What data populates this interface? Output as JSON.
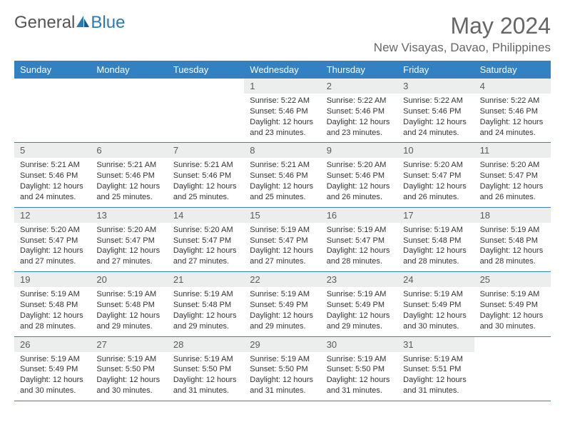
{
  "logo": {
    "general": "General",
    "blue": "Blue"
  },
  "title": "May 2024",
  "location": "New Visayas, Davao, Philippines",
  "colors": {
    "header_bg": "#3181c3",
    "header_text": "#ffffff",
    "daynum_bg": "#eceded",
    "text": "#333333",
    "rule": "#3181c3"
  },
  "daynames": [
    "Sunday",
    "Monday",
    "Tuesday",
    "Wednesday",
    "Thursday",
    "Friday",
    "Saturday"
  ],
  "weeks": [
    [
      {
        "n": "",
        "sr": "",
        "ss": "",
        "dl": "",
        "empty": true
      },
      {
        "n": "",
        "sr": "",
        "ss": "",
        "dl": "",
        "empty": true
      },
      {
        "n": "",
        "sr": "",
        "ss": "",
        "dl": "",
        "empty": true
      },
      {
        "n": "1",
        "sr": "Sunrise: 5:22 AM",
        "ss": "Sunset: 5:46 PM",
        "dl": "Daylight: 12 hours and 23 minutes."
      },
      {
        "n": "2",
        "sr": "Sunrise: 5:22 AM",
        "ss": "Sunset: 5:46 PM",
        "dl": "Daylight: 12 hours and 23 minutes."
      },
      {
        "n": "3",
        "sr": "Sunrise: 5:22 AM",
        "ss": "Sunset: 5:46 PM",
        "dl": "Daylight: 12 hours and 24 minutes."
      },
      {
        "n": "4",
        "sr": "Sunrise: 5:22 AM",
        "ss": "Sunset: 5:46 PM",
        "dl": "Daylight: 12 hours and 24 minutes."
      }
    ],
    [
      {
        "n": "5",
        "sr": "Sunrise: 5:21 AM",
        "ss": "Sunset: 5:46 PM",
        "dl": "Daylight: 12 hours and 24 minutes."
      },
      {
        "n": "6",
        "sr": "Sunrise: 5:21 AM",
        "ss": "Sunset: 5:46 PM",
        "dl": "Daylight: 12 hours and 25 minutes."
      },
      {
        "n": "7",
        "sr": "Sunrise: 5:21 AM",
        "ss": "Sunset: 5:46 PM",
        "dl": "Daylight: 12 hours and 25 minutes."
      },
      {
        "n": "8",
        "sr": "Sunrise: 5:21 AM",
        "ss": "Sunset: 5:46 PM",
        "dl": "Daylight: 12 hours and 25 minutes."
      },
      {
        "n": "9",
        "sr": "Sunrise: 5:20 AM",
        "ss": "Sunset: 5:46 PM",
        "dl": "Daylight: 12 hours and 26 minutes."
      },
      {
        "n": "10",
        "sr": "Sunrise: 5:20 AM",
        "ss": "Sunset: 5:47 PM",
        "dl": "Daylight: 12 hours and 26 minutes."
      },
      {
        "n": "11",
        "sr": "Sunrise: 5:20 AM",
        "ss": "Sunset: 5:47 PM",
        "dl": "Daylight: 12 hours and 26 minutes."
      }
    ],
    [
      {
        "n": "12",
        "sr": "Sunrise: 5:20 AM",
        "ss": "Sunset: 5:47 PM",
        "dl": "Daylight: 12 hours and 27 minutes."
      },
      {
        "n": "13",
        "sr": "Sunrise: 5:20 AM",
        "ss": "Sunset: 5:47 PM",
        "dl": "Daylight: 12 hours and 27 minutes."
      },
      {
        "n": "14",
        "sr": "Sunrise: 5:20 AM",
        "ss": "Sunset: 5:47 PM",
        "dl": "Daylight: 12 hours and 27 minutes."
      },
      {
        "n": "15",
        "sr": "Sunrise: 5:19 AM",
        "ss": "Sunset: 5:47 PM",
        "dl": "Daylight: 12 hours and 27 minutes."
      },
      {
        "n": "16",
        "sr": "Sunrise: 5:19 AM",
        "ss": "Sunset: 5:47 PM",
        "dl": "Daylight: 12 hours and 28 minutes."
      },
      {
        "n": "17",
        "sr": "Sunrise: 5:19 AM",
        "ss": "Sunset: 5:48 PM",
        "dl": "Daylight: 12 hours and 28 minutes."
      },
      {
        "n": "18",
        "sr": "Sunrise: 5:19 AM",
        "ss": "Sunset: 5:48 PM",
        "dl": "Daylight: 12 hours and 28 minutes."
      }
    ],
    [
      {
        "n": "19",
        "sr": "Sunrise: 5:19 AM",
        "ss": "Sunset: 5:48 PM",
        "dl": "Daylight: 12 hours and 28 minutes."
      },
      {
        "n": "20",
        "sr": "Sunrise: 5:19 AM",
        "ss": "Sunset: 5:48 PM",
        "dl": "Daylight: 12 hours and 29 minutes."
      },
      {
        "n": "21",
        "sr": "Sunrise: 5:19 AM",
        "ss": "Sunset: 5:48 PM",
        "dl": "Daylight: 12 hours and 29 minutes."
      },
      {
        "n": "22",
        "sr": "Sunrise: 5:19 AM",
        "ss": "Sunset: 5:49 PM",
        "dl": "Daylight: 12 hours and 29 minutes."
      },
      {
        "n": "23",
        "sr": "Sunrise: 5:19 AM",
        "ss": "Sunset: 5:49 PM",
        "dl": "Daylight: 12 hours and 29 minutes."
      },
      {
        "n": "24",
        "sr": "Sunrise: 5:19 AM",
        "ss": "Sunset: 5:49 PM",
        "dl": "Daylight: 12 hours and 30 minutes."
      },
      {
        "n": "25",
        "sr": "Sunrise: 5:19 AM",
        "ss": "Sunset: 5:49 PM",
        "dl": "Daylight: 12 hours and 30 minutes."
      }
    ],
    [
      {
        "n": "26",
        "sr": "Sunrise: 5:19 AM",
        "ss": "Sunset: 5:49 PM",
        "dl": "Daylight: 12 hours and 30 minutes."
      },
      {
        "n": "27",
        "sr": "Sunrise: 5:19 AM",
        "ss": "Sunset: 5:50 PM",
        "dl": "Daylight: 12 hours and 30 minutes."
      },
      {
        "n": "28",
        "sr": "Sunrise: 5:19 AM",
        "ss": "Sunset: 5:50 PM",
        "dl": "Daylight: 12 hours and 31 minutes."
      },
      {
        "n": "29",
        "sr": "Sunrise: 5:19 AM",
        "ss": "Sunset: 5:50 PM",
        "dl": "Daylight: 12 hours and 31 minutes."
      },
      {
        "n": "30",
        "sr": "Sunrise: 5:19 AM",
        "ss": "Sunset: 5:50 PM",
        "dl": "Daylight: 12 hours and 31 minutes."
      },
      {
        "n": "31",
        "sr": "Sunrise: 5:19 AM",
        "ss": "Sunset: 5:51 PM",
        "dl": "Daylight: 12 hours and 31 minutes."
      },
      {
        "n": "",
        "sr": "",
        "ss": "",
        "dl": "",
        "empty": true
      }
    ]
  ]
}
